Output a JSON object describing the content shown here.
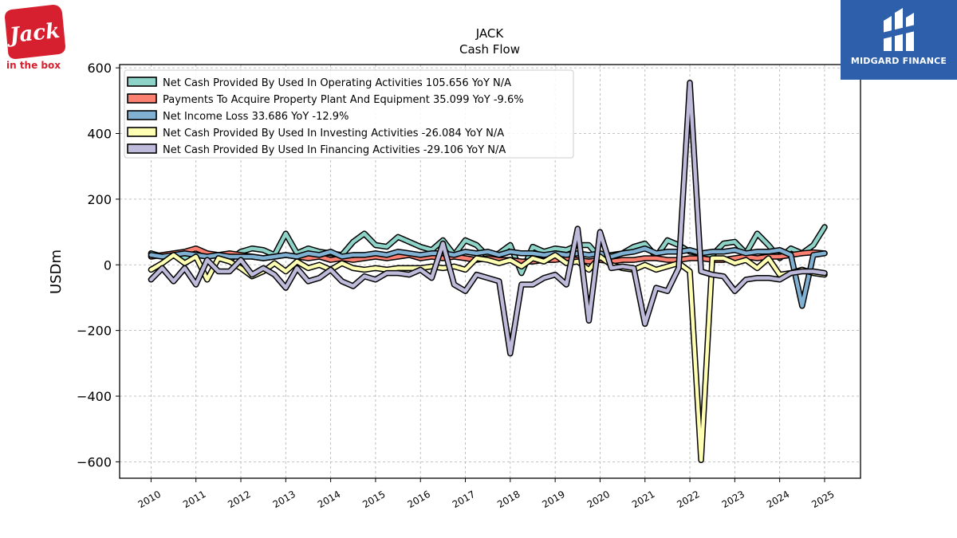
{
  "branding": {
    "left_logo": {
      "icon": "jack-in-the-box-logo-icon",
      "text_main": "Jack",
      "text_sub": "in the box",
      "color": "#d6202f"
    },
    "right_logo": {
      "icon": "midgard-finance-logo-icon",
      "text": "MIDGARD FINANCE",
      "color": "#2e5faa"
    }
  },
  "chart_data": {
    "type": "line",
    "title": "JACK",
    "subtitle": "Cash Flow",
    "ylabel": "USDm",
    "xlabel": "",
    "ylim": [
      -650,
      610
    ],
    "yticks": [
      -600,
      -400,
      -200,
      0,
      200,
      400,
      600
    ],
    "ytick_labels": [
      "−600",
      "−400",
      "−200",
      "0",
      "200",
      "400",
      "600"
    ],
    "xlim": [
      2009.3,
      2025.8
    ],
    "xticks": [
      2010,
      2011,
      2012,
      2013,
      2014,
      2015,
      2016,
      2017,
      2018,
      2019,
      2020,
      2021,
      2022,
      2023,
      2024,
      2025
    ],
    "xtick_labels": [
      "2010",
      "2011",
      "2012",
      "2013",
      "2014",
      "2015",
      "2016",
      "2017",
      "2018",
      "2019",
      "2020",
      "2021",
      "2022",
      "2023",
      "2024",
      "2025"
    ],
    "grid": true,
    "legend_position": "top-left",
    "x": [
      2010.0,
      2010.25,
      2010.5,
      2010.75,
      2011.0,
      2011.25,
      2011.5,
      2011.75,
      2012.0,
      2012.25,
      2012.5,
      2012.75,
      2013.0,
      2013.25,
      2013.5,
      2013.75,
      2014.0,
      2014.25,
      2014.5,
      2014.75,
      2015.0,
      2015.25,
      2015.5,
      2015.75,
      2016.0,
      2016.25,
      2016.5,
      2016.75,
      2017.0,
      2017.25,
      2017.5,
      2017.75,
      2018.0,
      2018.25,
      2018.5,
      2018.75,
      2019.0,
      2019.25,
      2019.5,
      2019.75,
      2020.0,
      2020.25,
      2020.5,
      2020.75,
      2021.0,
      2021.25,
      2021.5,
      2021.75,
      2022.0,
      2022.25,
      2022.5,
      2022.75,
      2023.0,
      2023.25,
      2023.5,
      2023.75,
      2024.0,
      2024.25,
      2024.5,
      2024.75,
      2025.0
    ],
    "series": [
      {
        "name": "Net Cash Provided By Used In Operating Activities",
        "legend_label": "Net Cash Provided By Used In Operating Activities  105.656 YoY N/A",
        "color": "#8dd3c7",
        "values": [
          35,
          25,
          30,
          20,
          40,
          25,
          30,
          15,
          40,
          50,
          45,
          30,
          95,
          35,
          50,
          40,
          35,
          30,
          70,
          95,
          60,
          55,
          85,
          70,
          55,
          45,
          75,
          30,
          75,
          60,
          25,
          35,
          60,
          -25,
          55,
          40,
          50,
          45,
          60,
          60,
          20,
          30,
          35,
          55,
          65,
          25,
          75,
          60,
          40,
          35,
          30,
          65,
          70,
          35,
          95,
          60,
          20,
          50,
          35,
          60,
          115
        ]
      },
      {
        "name": "Payments To Acquire Property Plant And Equipment",
        "legend_label": "Payments To Acquire Property Plant And Equipment  35.099 YoY -9.6%",
        "color": "#fb8072",
        "values": [
          25,
          30,
          35,
          40,
          50,
          35,
          30,
          35,
          30,
          25,
          20,
          25,
          30,
          25,
          20,
          25,
          15,
          20,
          15,
          20,
          25,
          20,
          25,
          30,
          20,
          25,
          20,
          25,
          20,
          15,
          20,
          15,
          15,
          10,
          10,
          15,
          15,
          20,
          15,
          10,
          15,
          10,
          15,
          15,
          20,
          20,
          15,
          15,
          20,
          20,
          15,
          15,
          20,
          25,
          20,
          25,
          25,
          30,
          35,
          38,
          35
        ]
      },
      {
        "name": "Net Income Loss",
        "legend_label": "Net Income Loss  33.686 YoY -12.9%",
        "color": "#80b1d3",
        "values": [
          30,
          25,
          30,
          35,
          30,
          25,
          30,
          25,
          25,
          25,
          20,
          25,
          30,
          25,
          35,
          30,
          40,
          25,
          30,
          30,
          35,
          30,
          40,
          35,
          30,
          35,
          35,
          30,
          40,
          35,
          40,
          30,
          40,
          35,
          35,
          30,
          35,
          30,
          35,
          30,
          35,
          25,
          35,
          40,
          50,
          35,
          40,
          40,
          45,
          35,
          40,
          40,
          45,
          35,
          40,
          40,
          45,
          30,
          -125,
          30,
          35
        ]
      },
      {
        "name": "Net Cash Provided By Used In Investing Activities",
        "legend_label": "Net Cash Provided By Used In Investing Activities  -26.084 YoY N/A",
        "color": "#ffffb3",
        "values": [
          -15,
          5,
          30,
          5,
          25,
          -45,
          20,
          10,
          -10,
          -35,
          -20,
          5,
          -20,
          10,
          -10,
          0,
          -15,
          5,
          -10,
          -15,
          -10,
          -15,
          -10,
          -10,
          -10,
          -5,
          -10,
          -5,
          -15,
          20,
          15,
          5,
          15,
          -5,
          20,
          10,
          30,
          5,
          10,
          -15,
          25,
          0,
          -10,
          -15,
          0,
          -15,
          -5,
          5,
          -20,
          -595,
          20,
          20,
          5,
          15,
          -10,
          20,
          -30,
          -25,
          -15,
          -25,
          -30
        ]
      },
      {
        "name": "Net Cash Provided By Used In Financing Activities",
        "legend_label": "Net Cash Provided By Used In Financing Activities  -29.106 YoY N/A",
        "color": "#bebada",
        "values": [
          -45,
          -10,
          -50,
          -10,
          -60,
          15,
          -20,
          -20,
          15,
          -30,
          -10,
          -30,
          -70,
          -10,
          -50,
          -40,
          -15,
          -50,
          -65,
          -35,
          -45,
          -25,
          -25,
          -30,
          -15,
          -40,
          65,
          -60,
          -80,
          -30,
          -40,
          -50,
          -270,
          -60,
          -60,
          -40,
          -30,
          -60,
          110,
          -170,
          100,
          -10,
          -5,
          -10,
          -180,
          -70,
          -80,
          -10,
          555,
          -20,
          -30,
          -35,
          -80,
          -45,
          -40,
          -40,
          -45,
          -25,
          -20,
          -20,
          -25
        ]
      }
    ]
  }
}
